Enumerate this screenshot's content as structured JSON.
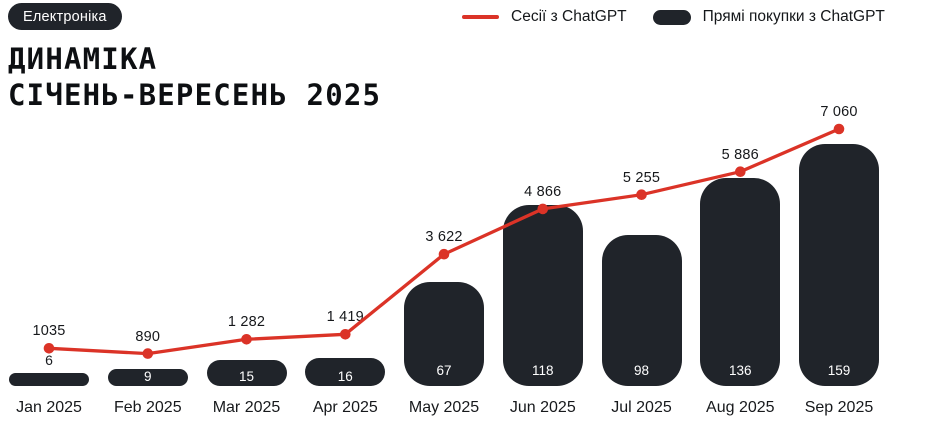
{
  "badge": {
    "label": "Електроніка"
  },
  "title": {
    "line1": "ДИНАМІКА",
    "line2": "СІЧЕНЬ-ВЕРЕСЕНЬ 2025"
  },
  "legend": {
    "items": [
      {
        "label": "Сесії з ChatGPT",
        "swatch": "line",
        "color": "#db3327"
      },
      {
        "label": "Прямі покупки з ChatGPT",
        "swatch": "pill",
        "color": "#20242a"
      }
    ]
  },
  "colors": {
    "accent_red": "#db3327",
    "dark": "#20242a",
    "background": "#ffffff",
    "text": "#14171a"
  },
  "chart_data": {
    "type": "combo bar+line",
    "title": "ДИНАМІКА СІЧЕНЬ-ВЕРЕСЕНЬ 2025",
    "categories": [
      "Jan 2025",
      "Feb 2025",
      "Mar 2025",
      "Apr 2025",
      "May 2025",
      "Jun 2025",
      "Jul 2025",
      "Aug 2025",
      "Sep 2025"
    ],
    "series": [
      {
        "name": "Сесії з ChatGPT",
        "type": "line",
        "color": "#db3327",
        "values": [
          1035,
          890,
          1282,
          1419,
          3622,
          4866,
          5255,
          5886,
          7060
        ],
        "labels": [
          "1035",
          "890",
          "1 282",
          "1 419",
          "3 622",
          "4 866",
          "5 255",
          "5 886",
          "7 060"
        ],
        "ylim": [
          0,
          7500
        ]
      },
      {
        "name": "Прямі покупки з ChatGPT",
        "type": "bar",
        "color": "#20242a",
        "values": [
          6,
          9,
          15,
          16,
          67,
          118,
          98,
          136,
          159
        ],
        "labels": [
          "6",
          "9",
          "15",
          "16",
          "67",
          "118",
          "98",
          "136",
          "159"
        ],
        "ylim": [
          0,
          170
        ]
      }
    ],
    "legend_position": "top-right",
    "grid": false,
    "axes_visible": false,
    "xlabel": "",
    "ylabel": ""
  }
}
